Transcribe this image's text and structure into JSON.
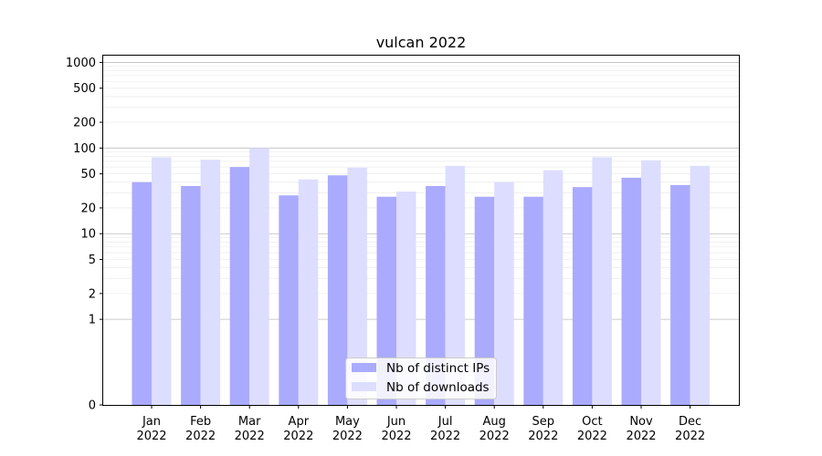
{
  "chart_data": {
    "type": "bar",
    "title": "vulcan 2022",
    "xlabel": "",
    "ylabel": "",
    "y_scale": "symlog",
    "ylim": [
      0,
      1200
    ],
    "y_ticks": [
      0,
      1,
      2,
      5,
      10,
      20,
      50,
      100,
      200,
      500,
      1000
    ],
    "y_tick_labels": [
      "0",
      "1",
      "2",
      "5",
      "10",
      "20",
      "50",
      "100",
      "200",
      "500",
      "1000"
    ],
    "grid": true,
    "legend_position": "bottom-center",
    "categories": [
      [
        "Jan",
        "2022"
      ],
      [
        "Feb",
        "2022"
      ],
      [
        "Mar",
        "2022"
      ],
      [
        "Apr",
        "2022"
      ],
      [
        "May",
        "2022"
      ],
      [
        "Jun",
        "2022"
      ],
      [
        "Jul",
        "2022"
      ],
      [
        "Aug",
        "2022"
      ],
      [
        "Sep",
        "2022"
      ],
      [
        "Oct",
        "2022"
      ],
      [
        "Nov",
        "2022"
      ],
      [
        "Dec",
        "2022"
      ]
    ],
    "series": [
      {
        "name": "Nb of distinct IPs",
        "color": "#aaaaff",
        "values": [
          40,
          36,
          60,
          28,
          48,
          27,
          36,
          27,
          27,
          35,
          45,
          37
        ]
      },
      {
        "name": "Nb of downloads",
        "color": "#ddddff",
        "values": [
          78,
          73,
          100,
          43,
          59,
          31,
          62,
          40,
          55,
          78,
          72,
          62
        ]
      }
    ]
  }
}
